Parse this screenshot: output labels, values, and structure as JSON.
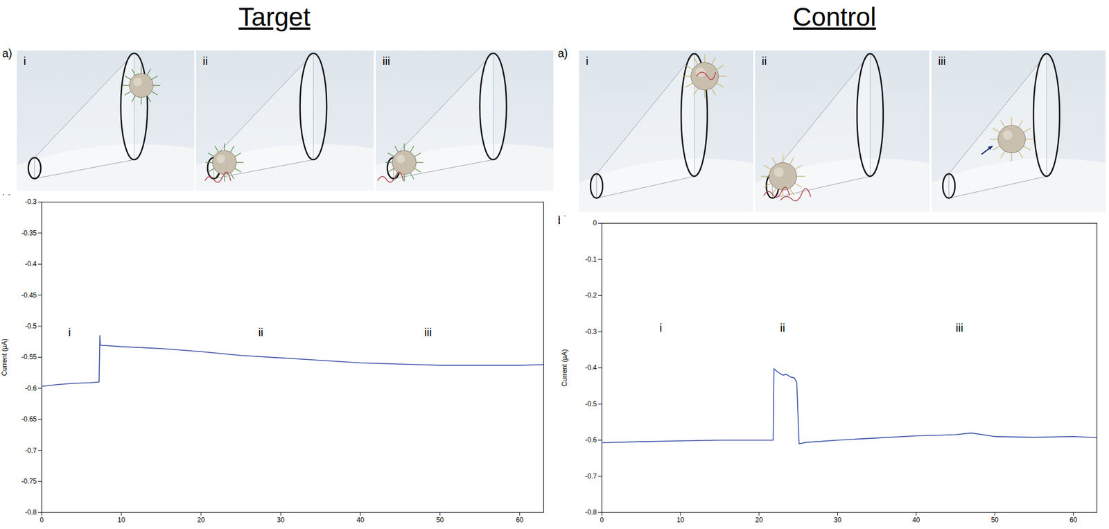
{
  "panels": [
    {
      "title": "Target",
      "illustration_letter": "a)",
      "steps": [
        "i",
        "ii",
        "iii"
      ],
      "chart_letter": "b)"
    },
    {
      "title": "Control",
      "illustration_letter": "a)",
      "steps": [
        "i",
        "ii",
        "iii"
      ],
      "chart_letter": "b)"
    }
  ],
  "chart_data": [
    {
      "type": "line",
      "y_label": "Current (µA)",
      "x": [
        0,
        2,
        4,
        6,
        7.2,
        7.3,
        7.35,
        7.5,
        8,
        10,
        15,
        20,
        25,
        30,
        35,
        40,
        45,
        50,
        55,
        60,
        63
      ],
      "values": [
        -0.597,
        -0.594,
        -0.592,
        -0.591,
        -0.59,
        -0.515,
        -0.53,
        -0.531,
        -0.531,
        -0.533,
        -0.536,
        -0.541,
        -0.547,
        -0.551,
        -0.555,
        -0.559,
        -0.561,
        -0.563,
        -0.563,
        -0.563,
        -0.562
      ],
      "color": "#3a4ea6",
      "xlim": [
        0,
        63
      ],
      "xticks": [
        0,
        10,
        20,
        30,
        40,
        50,
        60
      ],
      "ylim": [
        -0.8,
        -0.3
      ],
      "yticks": [
        -0.8,
        -0.75,
        -0.7,
        -0.65,
        -0.6,
        -0.55,
        -0.5,
        -0.45,
        -0.4,
        -0.35,
        -0.3
      ],
      "annotations": [
        {
          "text": "i",
          "x": 3.5,
          "y": -0.51
        },
        {
          "text": "ii",
          "x": 27.5,
          "y": -0.51
        },
        {
          "text": "iii",
          "x": 48.5,
          "y": -0.51
        }
      ]
    },
    {
      "type": "line",
      "y_label": "Current (µA)",
      "x": [
        0,
        5,
        10,
        15,
        20,
        21.8,
        21.9,
        22.3,
        23,
        23.5,
        24,
        24.5,
        24.8,
        25.1,
        26,
        30,
        35,
        40,
        45,
        47,
        50,
        55,
        60,
        63
      ],
      "values": [
        -0.607,
        -0.604,
        -0.602,
        -0.6,
        -0.6,
        -0.6,
        -0.402,
        -0.41,
        -0.42,
        -0.418,
        -0.425,
        -0.428,
        -0.44,
        -0.61,
        -0.606,
        -0.6,
        -0.594,
        -0.588,
        -0.585,
        -0.58,
        -0.59,
        -0.592,
        -0.59,
        -0.593
      ],
      "color": "#3a4ea6",
      "xlim": [
        0,
        63
      ],
      "xticks": [
        0,
        10,
        20,
        30,
        40,
        50,
        60
      ],
      "ylim": [
        -0.8,
        0
      ],
      "yticks": [
        -0.8,
        -0.7,
        -0.6,
        -0.5,
        -0.4,
        -0.3,
        -0.2,
        -0.1,
        0
      ],
      "annotations": [
        {
          "text": "i",
          "x": 7.5,
          "y": -0.29
        },
        {
          "text": "ii",
          "x": 23,
          "y": -0.29
        },
        {
          "text": "iii",
          "x": 45.5,
          "y": -0.29
        }
      ]
    }
  ]
}
